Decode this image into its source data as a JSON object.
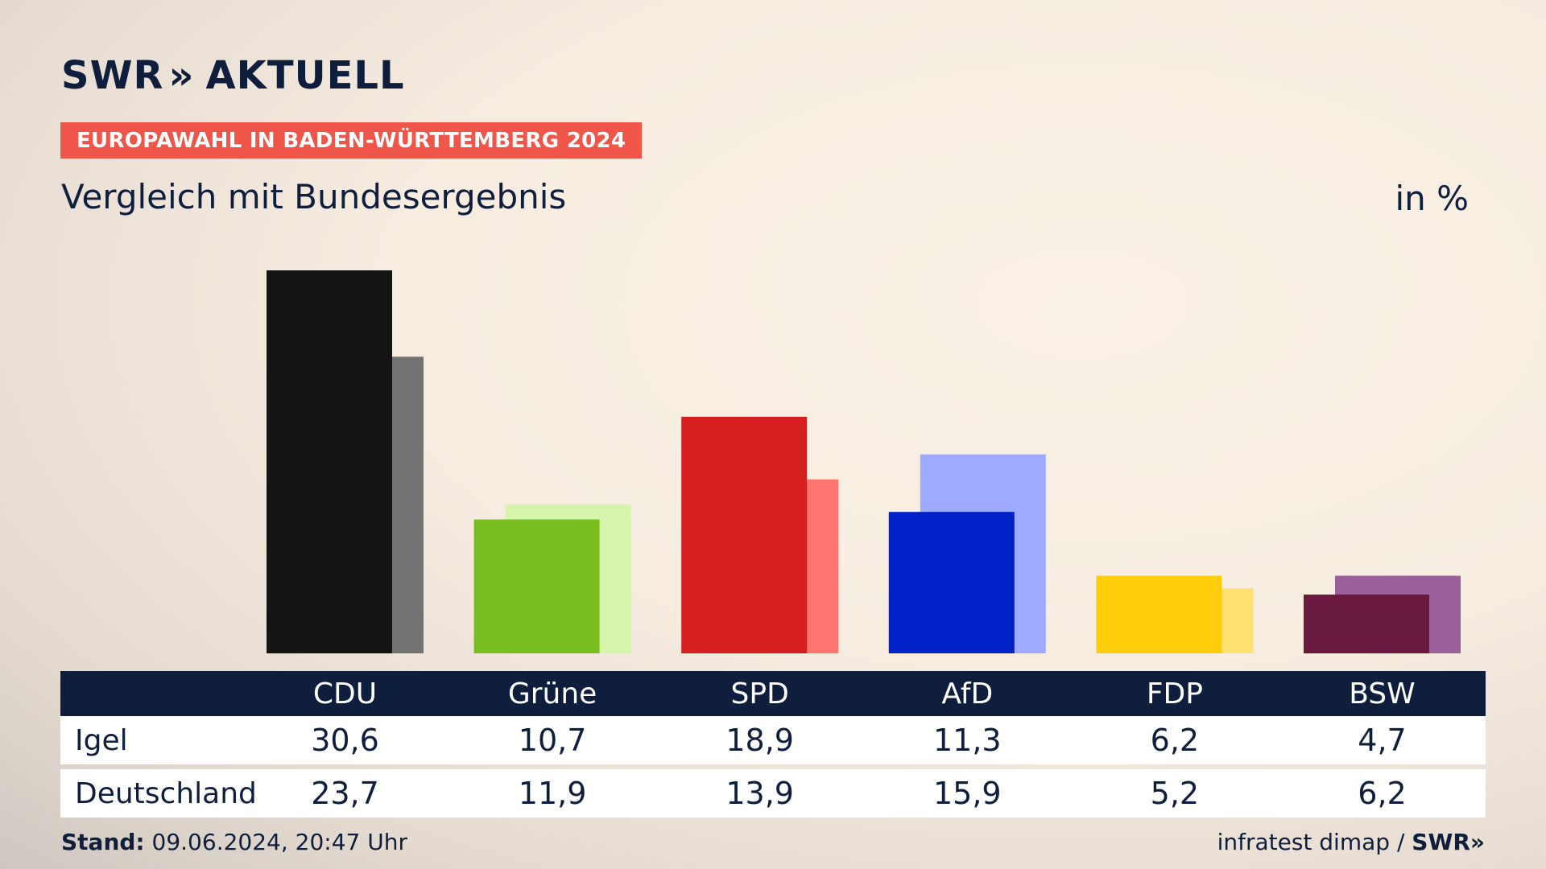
{
  "brand": {
    "logo_left": "SWR",
    "logo_sep": "»",
    "logo_right": "AKTUELL"
  },
  "kicker": "EUROPAWAHL IN BADEN-WÜRTTEMBERG 2024",
  "headline": "Vergleich mit Bundesergebnis",
  "unit": "in %",
  "table": {
    "rows": [
      {
        "label": "Igel",
        "values": [
          "30,6",
          "10,7",
          "18,9",
          "11,3",
          "6,2",
          "4,7"
        ]
      },
      {
        "label": "Deutschland",
        "values": [
          "23,7",
          "11,9",
          "13,9",
          "15,9",
          "5,2",
          "6,2"
        ]
      }
    ]
  },
  "footer": {
    "stand_label": "Stand:",
    "stand_value": "09.06.2024, 20:47 Uhr",
    "source": "infratest dimap /",
    "source_brand": "SWR»"
  },
  "chart_data": {
    "type": "bar",
    "categories": [
      "CDU",
      "Grüne",
      "SPD",
      "AfD",
      "FDP",
      "BSW"
    ],
    "series": [
      {
        "name": "Igel",
        "values": [
          30.6,
          10.7,
          18.9,
          11.3,
          6.2,
          4.7
        ],
        "colors": [
          "#141414",
          "#78be1e",
          "#d71f1f",
          "#0020c8",
          "#ffcd0a",
          "#6b1a3f"
        ]
      },
      {
        "name": "Deutschland",
        "values": [
          23.7,
          11.9,
          13.9,
          15.9,
          5.2,
          6.2
        ],
        "colors": [
          "#737373",
          "#d7f5aa",
          "#ff7370",
          "#9eaaff",
          "#ffe173",
          "#9b5f9b"
        ]
      }
    ],
    "ylim": [
      0,
      30.6
    ],
    "grid": false,
    "legend": "table-below"
  }
}
